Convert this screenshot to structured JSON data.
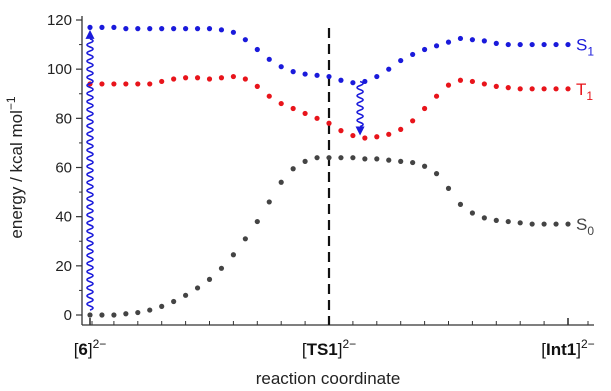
{
  "chart_data": {
    "type": "scatter",
    "xlabel": "reaction coordinate",
    "ylabel": "energy / kcal mol−1",
    "ylabel_main": "energy / kcal mol",
    "ylabel_sup": "−1",
    "ylim": [
      0,
      120
    ],
    "yticks": [
      "0",
      "20",
      "40",
      "60",
      "80",
      "100",
      "120"
    ],
    "xlim": [
      0,
      2
    ],
    "x_categories": [
      {
        "text": "[6]",
        "bold": "6",
        "sup": "2−"
      },
      {
        "text": "[TS1]",
        "bold": "TS1",
        "sup": "2−"
      },
      {
        "text": "[Int1]",
        "bold": "Int1",
        "sup": "2−"
      }
    ],
    "x_category_positions": [
      0,
      1,
      2
    ],
    "ts_marker_x": 1,
    "grid": false,
    "series": [
      {
        "name": "S1",
        "label_main": "S",
        "label_sub": "1",
        "color": "#1a1adb",
        "x": [
          0.0,
          0.05,
          0.1,
          0.15,
          0.2,
          0.25,
          0.3,
          0.35,
          0.4,
          0.45,
          0.5,
          0.55,
          0.6,
          0.65,
          0.7,
          0.75,
          0.8,
          0.85,
          0.9,
          0.95,
          1.0,
          1.05,
          1.1,
          1.15,
          1.2,
          1.25,
          1.3,
          1.35,
          1.4,
          1.45,
          1.5,
          1.55,
          1.6,
          1.65,
          1.7,
          1.75,
          1.8,
          1.85,
          1.9,
          1.95,
          2.0
        ],
        "y": [
          117,
          117,
          117,
          116.5,
          116.5,
          116.5,
          116.5,
          116.5,
          116.5,
          116.5,
          116.5,
          116,
          115,
          112,
          108,
          104,
          101,
          99,
          98,
          97.5,
          97,
          95.5,
          94.5,
          95,
          97,
          100,
          103.5,
          106,
          108,
          109.5,
          111,
          112.5,
          112,
          111.5,
          110.5,
          110,
          110,
          110,
          110,
          110,
          110
        ]
      },
      {
        "name": "T1",
        "label_main": "T",
        "label_sub": "1",
        "color": "#e8141b",
        "x": [
          0.0,
          0.05,
          0.1,
          0.15,
          0.2,
          0.25,
          0.3,
          0.35,
          0.4,
          0.45,
          0.5,
          0.55,
          0.6,
          0.65,
          0.7,
          0.75,
          0.8,
          0.85,
          0.9,
          0.95,
          1.0,
          1.05,
          1.1,
          1.15,
          1.2,
          1.25,
          1.3,
          1.35,
          1.4,
          1.45,
          1.5,
          1.55,
          1.6,
          1.65,
          1.7,
          1.75,
          1.8,
          1.85,
          1.9,
          1.95,
          2.0
        ],
        "y": [
          94,
          94,
          94,
          94,
          94,
          94,
          95,
          96,
          96.5,
          96.5,
          96,
          96.5,
          97,
          96,
          93,
          89,
          86,
          84,
          82,
          80,
          78,
          75,
          73,
          72,
          72.5,
          73.5,
          75.5,
          79,
          84,
          89,
          93.5,
          95.5,
          95,
          94,
          93,
          92.5,
          92,
          92,
          92,
          92,
          92
        ]
      },
      {
        "name": "S0",
        "label_main": "S",
        "label_sub": "0",
        "color": "#444444",
        "x": [
          0.0,
          0.05,
          0.1,
          0.15,
          0.2,
          0.25,
          0.3,
          0.35,
          0.4,
          0.45,
          0.5,
          0.55,
          0.6,
          0.65,
          0.7,
          0.75,
          0.8,
          0.85,
          0.9,
          0.95,
          1.0,
          1.05,
          1.1,
          1.15,
          1.2,
          1.25,
          1.3,
          1.35,
          1.4,
          1.45,
          1.5,
          1.55,
          1.6,
          1.65,
          1.7,
          1.75,
          1.8,
          1.85,
          1.9,
          1.95,
          2.0
        ],
        "y": [
          0,
          0,
          0,
          0.5,
          1,
          2,
          3.5,
          5.5,
          8,
          11,
          14.5,
          19,
          24.5,
          31,
          38,
          46,
          54,
          59.5,
          62.5,
          64,
          64,
          64,
          64,
          63.5,
          63.5,
          63,
          62.5,
          62,
          60.5,
          57.5,
          51.5,
          45,
          41.5,
          39.5,
          38.5,
          38,
          37.5,
          37,
          37,
          37,
          37
        ]
      }
    ],
    "annotations": [
      {
        "type": "wavy-arrow-up",
        "x": 0,
        "from_y": 2,
        "to_y": 116,
        "color": "#1a1adb"
      },
      {
        "type": "wavy-arrow-down",
        "x": 1.13,
        "from_y": 95,
        "to_y": 73,
        "color": "#1a1adb"
      }
    ]
  }
}
